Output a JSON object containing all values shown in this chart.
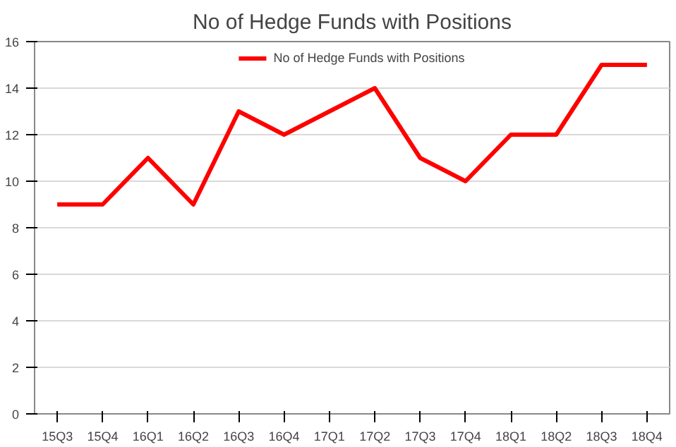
{
  "chart_data": {
    "type": "line",
    "title": "No of Hedge Funds with Positions",
    "categories": [
      "15Q3",
      "15Q4",
      "16Q1",
      "16Q2",
      "16Q3",
      "16Q4",
      "17Q1",
      "17Q2",
      "17Q3",
      "17Q4",
      "18Q1",
      "18Q2",
      "18Q3",
      "18Q4"
    ],
    "series": [
      {
        "name": "No of Hedge Funds with Positions",
        "color": "#ff0000",
        "values": [
          9,
          9,
          11,
          9,
          13,
          12,
          13,
          14,
          11,
          10,
          12,
          12,
          15,
          15
        ]
      }
    ],
    "ylim": [
      0,
      16
    ],
    "yticks": [
      0,
      2,
      4,
      6,
      8,
      10,
      12,
      14,
      16
    ],
    "grid": "y",
    "legend": "top",
    "marker": "none",
    "line_style": "solid"
  }
}
